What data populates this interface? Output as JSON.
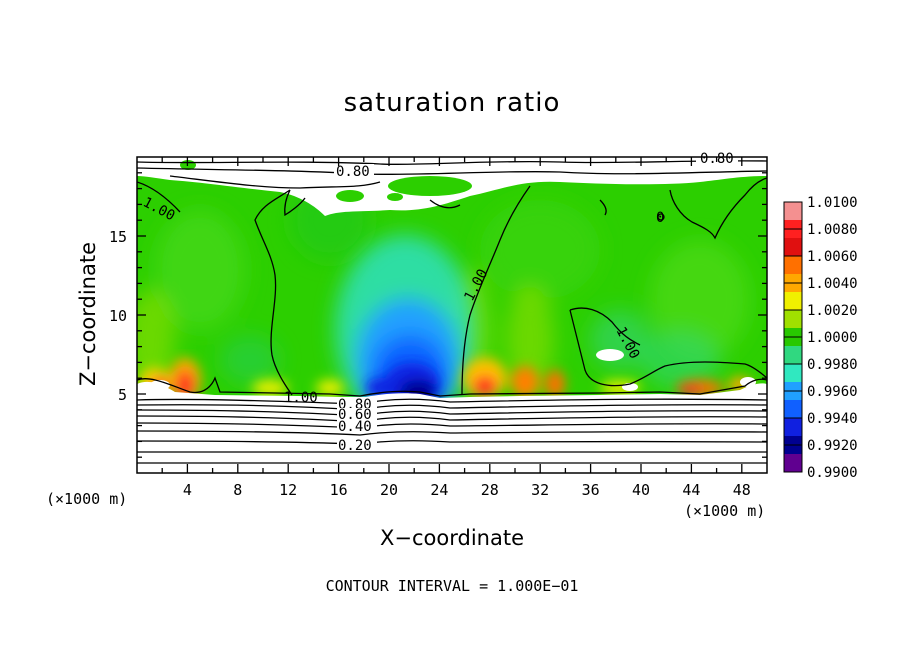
{
  "chart_data": {
    "type": "heatmap",
    "title": "saturation ratio",
    "xlabel": "X−coordinate",
    "ylabel": "Z−coordinate",
    "x_unit": "(×1000 m)",
    "xlim": [
      0,
      50
    ],
    "ylim": [
      0,
      20
    ],
    "x_ticks": [
      4,
      8,
      12,
      16,
      20,
      24,
      28,
      32,
      36,
      40,
      44,
      48
    ],
    "y_ticks": [
      5,
      10,
      15
    ],
    "contour_interval_text": "CONTOUR INTERVAL = 1.000E−01",
    "contour_labels": [
      "0.80",
      "0.80",
      "1.00",
      "1.00",
      "1.00",
      "1.00",
      "0",
      "0.80",
      "0.60",
      "0.40",
      "0.20"
    ],
    "colorbar": {
      "ticks": [
        "1.0100",
        "1.0080",
        "1.0060",
        "1.0040",
        "1.0020",
        "1.0000",
        "0.9980",
        "0.9960",
        "0.9940",
        "0.9920",
        "0.9900"
      ],
      "colors": [
        "#f49090",
        "#ff2020",
        "#e01010",
        "#ff7000",
        "#ffa800",
        "#f0f000",
        "#a0e000",
        "#28c800",
        "#30d880",
        "#30e8c0",
        "#20a0ff",
        "#1060ff",
        "#1020e0",
        "#000090",
        "#600090"
      ]
    }
  }
}
